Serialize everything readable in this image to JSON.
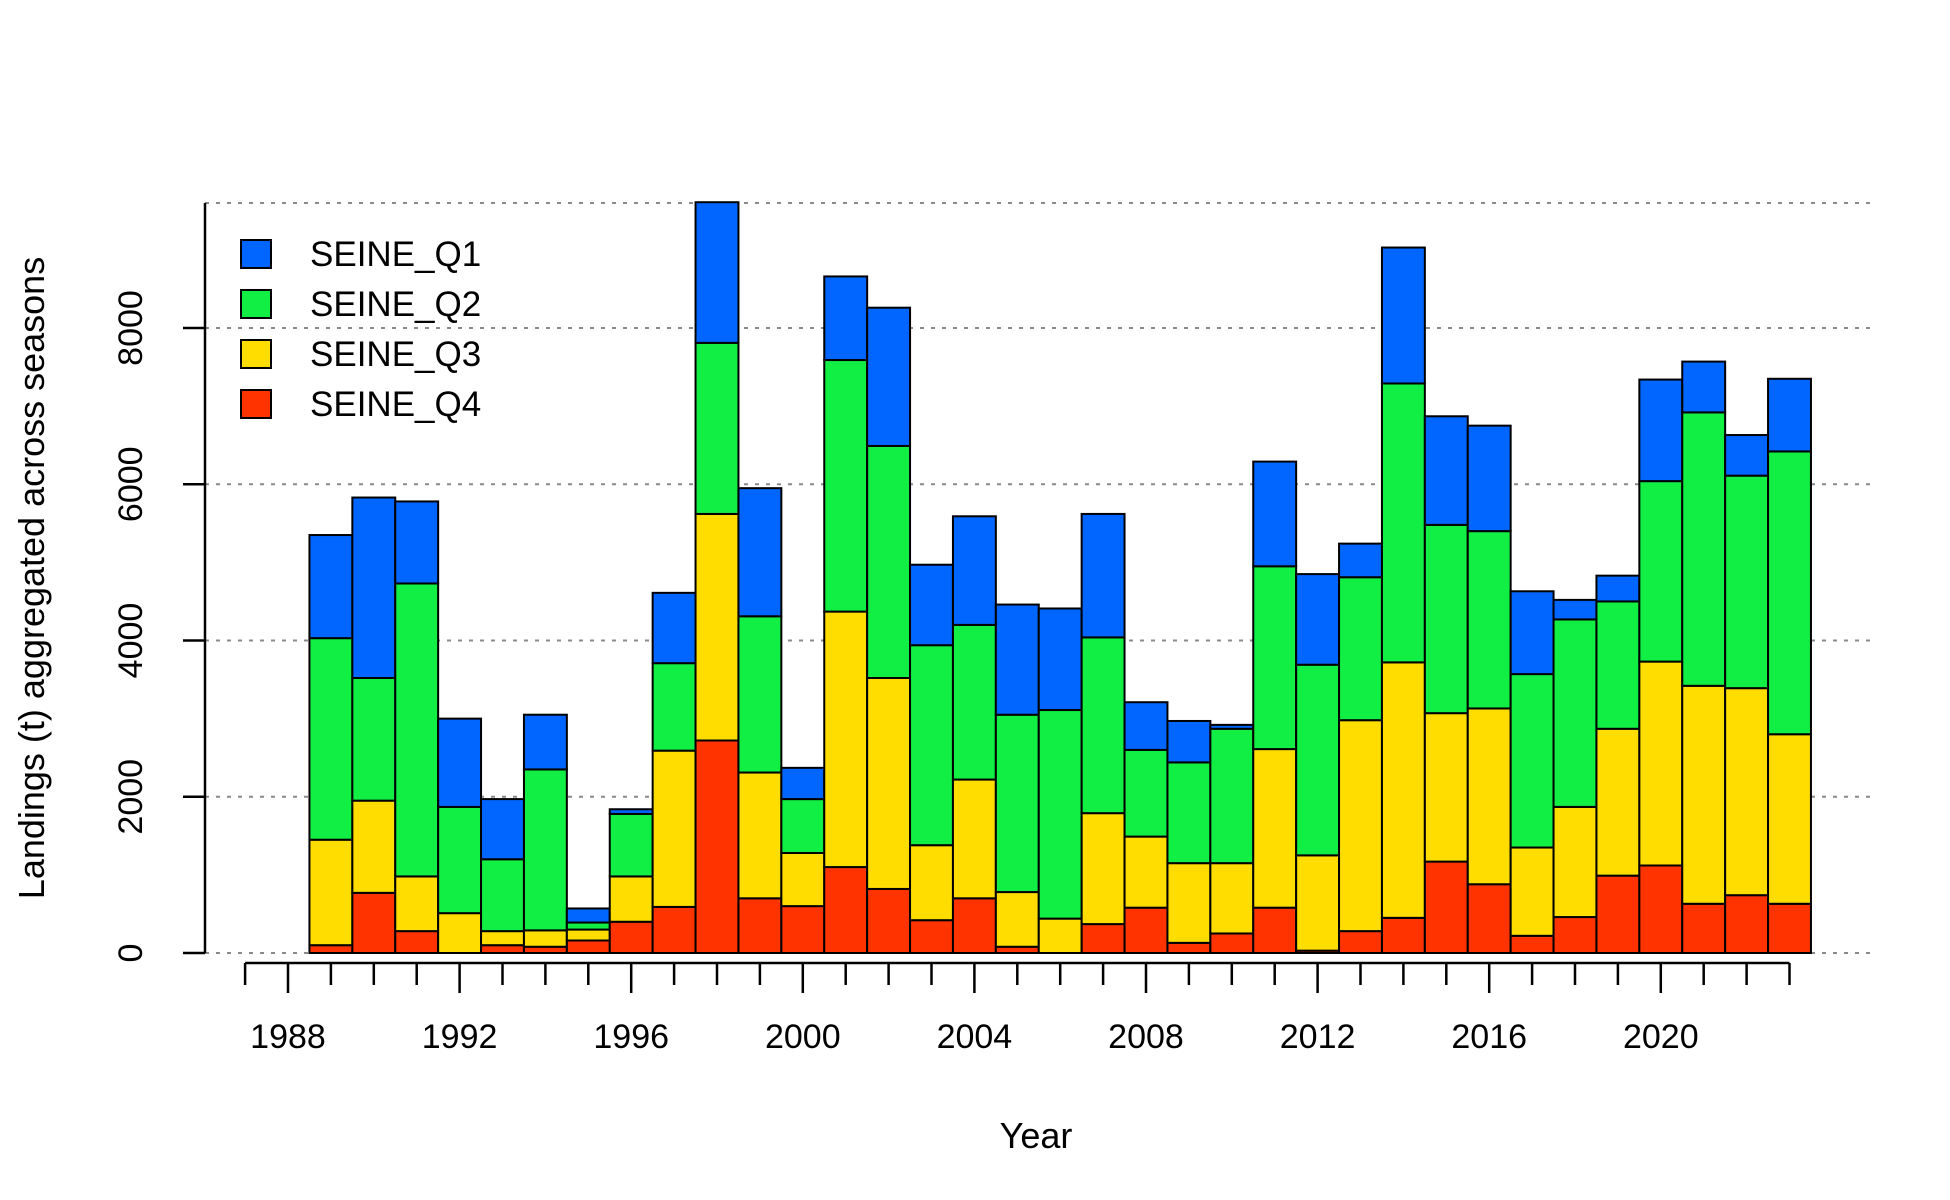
{
  "chart_data": {
    "type": "bar",
    "stacked": true,
    "title": "",
    "xlabel": "Year",
    "ylabel": "Landings (t) aggregated across seasons",
    "ylim": [
      0,
      9600
    ],
    "yticks": [
      0,
      2000,
      4000,
      6000,
      8000
    ],
    "xlim": [
      1987,
      2024
    ],
    "xticks": [
      1988,
      1992,
      1996,
      2000,
      2004,
      2008,
      2012,
      2016,
      2020
    ],
    "grid": "horizontal dotted",
    "legend_position": "top-left",
    "categories": [
      1989,
      1990,
      1991,
      1992,
      1993,
      1994,
      1995,
      1996,
      1997,
      1998,
      1999,
      2000,
      2001,
      2002,
      2003,
      2004,
      2005,
      2006,
      2007,
      2008,
      2009,
      2010,
      2011,
      2012,
      2013,
      2014,
      2015,
      2016,
      2017,
      2018,
      2019,
      2020,
      2021,
      2022,
      2023
    ],
    "series": [
      {
        "name": "SEINE_Q4",
        "color": "#ff3300",
        "values": [
          100,
          770,
          280,
          0,
          100,
          80,
          160,
          400,
          590,
          2720,
          700,
          600,
          1100,
          820,
          420,
          700,
          80,
          0,
          370,
          580,
          130,
          250,
          580,
          30,
          280,
          450,
          1170,
          880,
          220,
          460,
          990,
          1120,
          630,
          740,
          630
        ]
      },
      {
        "name": "SEINE_Q3",
        "color": "#ffdd00",
        "values": [
          1350,
          1180,
          700,
          510,
          180,
          210,
          140,
          580,
          2000,
          2900,
          1610,
          680,
          3270,
          2700,
          960,
          1520,
          700,
          440,
          1420,
          910,
          1020,
          900,
          2030,
          1220,
          2700,
          3270,
          1900,
          2250,
          1130,
          1410,
          1880,
          2610,
          2790,
          2650,
          2170
        ]
      },
      {
        "name": "SEINE_Q2",
        "color": "#11ee44",
        "values": [
          2580,
          1570,
          3750,
          1360,
          920,
          2060,
          90,
          800,
          1120,
          2190,
          2000,
          690,
          3220,
          2970,
          2560,
          1980,
          2270,
          2670,
          2250,
          1110,
          1290,
          1720,
          2340,
          2440,
          1830,
          3570,
          2410,
          2270,
          2220,
          2400,
          1630,
          2310,
          3500,
          2720,
          3620
        ]
      },
      {
        "name": "SEINE_Q1",
        "color": "#0066ff",
        "values": [
          1320,
          2310,
          1050,
          1130,
          770,
          700,
          180,
          60,
          900,
          1800,
          1640,
          400,
          1070,
          1770,
          1030,
          1390,
          1410,
          1300,
          1580,
          610,
          530,
          50,
          1340,
          1160,
          430,
          1740,
          1390,
          1350,
          1060,
          250,
          330,
          1300,
          650,
          520,
          930
        ]
      }
    ]
  }
}
